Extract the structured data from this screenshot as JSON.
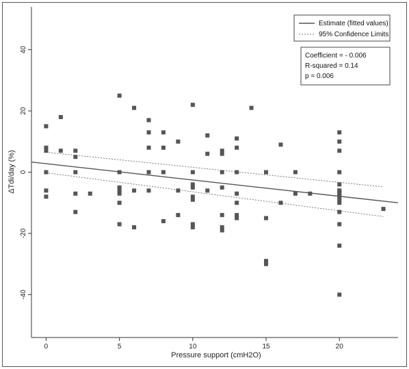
{
  "chart_data": {
    "type": "scatter",
    "xlabel": "Pressure support (cmH2O)",
    "ylabel": "ΔTdi/day (%)",
    "xlim": [
      -1,
      24
    ],
    "ylim": [
      -54,
      54
    ],
    "xticks": [
      "0",
      "5",
      "10",
      "15",
      "20"
    ],
    "yticks": [
      "40",
      "20",
      "0",
      "-20",
      "-40"
    ],
    "series": [
      {
        "name": "points",
        "x": [
          0,
          0,
          0,
          0,
          0,
          0,
          1,
          1,
          2,
          2,
          2,
          2,
          2,
          3,
          5,
          5,
          5,
          5,
          5,
          5,
          5,
          6,
          6,
          6,
          7,
          7,
          7,
          7,
          7,
          8,
          8,
          8,
          8,
          9,
          9,
          9,
          10,
          10,
          10,
          10,
          10,
          10,
          10,
          10,
          11,
          11,
          11,
          12,
          12,
          12,
          12,
          12,
          12,
          12,
          13,
          13,
          13,
          13,
          13,
          13,
          13,
          14,
          15,
          15,
          15,
          15,
          16,
          16,
          17,
          17,
          18,
          20,
          20,
          20,
          20,
          20,
          20,
          20,
          20,
          20,
          20,
          20,
          20,
          20,
          20,
          20,
          20,
          23
        ],
        "y": [
          15,
          8,
          7,
          0,
          -6,
          -8,
          18,
          7,
          -13,
          7,
          5,
          0,
          -7,
          -7,
          25,
          0,
          -5,
          -6,
          -7,
          -10,
          -17,
          21,
          -6,
          -18,
          17,
          13,
          8,
          0,
          -6,
          13,
          8,
          0,
          -16,
          10,
          -6,
          -14,
          22,
          0,
          -4,
          -5,
          -8,
          -9,
          -17,
          -18,
          12,
          6,
          -6,
          7,
          6,
          0,
          -5,
          -14,
          -18,
          -19,
          11,
          8,
          0,
          -7,
          -10,
          -14,
          -15,
          21,
          0,
          -15,
          -29,
          -30,
          9,
          -10,
          0,
          -7,
          -7,
          13,
          10,
          7,
          0,
          -4,
          -6,
          -7,
          -8,
          -10,
          -13,
          -17,
          -24,
          -40,
          -6,
          -9,
          -7,
          -12
        ]
      }
    ],
    "fit_line": {
      "name": "Estimate (fitted values)",
      "x": [
        -1,
        24
      ],
      "y": [
        3.3,
        -10.0
      ]
    },
    "ci_upper": {
      "name": "95% Confidence Limits",
      "x": [
        0,
        23
      ],
      "y": [
        6.5,
        -4.8
      ]
    },
    "ci_lower": {
      "name": "95% Confidence Limits",
      "x": [
        0,
        23
      ],
      "y": [
        -0.2,
        -14.5
      ]
    },
    "legend": {
      "placement": "top-right",
      "entries": [
        "Estimate (fitted values)",
        "95% Confidence Limits"
      ]
    },
    "annotation": {
      "lines": [
        "Coefficient = - 0.006",
        "R-squared = 0.14",
        "p = 0.006"
      ]
    },
    "grid": false
  }
}
